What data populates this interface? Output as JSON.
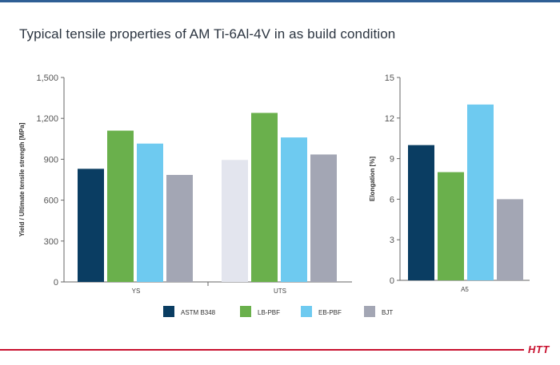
{
  "title": "Typical tensile properties of AM Ti-6Al-4V in as build condition",
  "logo_text": "HTT",
  "colors": {
    "top_bar": "#2f5f95",
    "footer_line": "#c8102e",
    "logo": "#c8102e",
    "title": "#2b3440",
    "axis": "#666666"
  },
  "legend": [
    {
      "name": "ASTM B348",
      "color": "#0a3d62"
    },
    {
      "name": "LB-PBF",
      "color": "#6ab04c"
    },
    {
      "name": "EB-PBF",
      "color": "#6ecaf0"
    },
    {
      "name": "BJT",
      "color": "#a3a6b4"
    }
  ],
  "chart_data": [
    {
      "type": "bar",
      "title": "",
      "ylabel": "Yield / Ultimate tensile strength [MPa]",
      "ylim": [
        0,
        1500
      ],
      "yticks": [
        "0",
        "300",
        "600",
        "900",
        "1,200",
        "1,500"
      ],
      "categories": [
        "YS",
        "UTS"
      ],
      "series": [
        {
          "name": "ASTM B348",
          "color": "#0a3d62",
          "values": [
            830,
            895
          ],
          "colors": [
            "#0a3d62",
            "#e3e5ee"
          ]
        },
        {
          "name": "LB-PBF",
          "color": "#6ab04c",
          "values": [
            1110,
            1240
          ]
        },
        {
          "name": "EB-PBF",
          "color": "#6ecaf0",
          "values": [
            1015,
            1060
          ]
        },
        {
          "name": "BJT",
          "color": "#a3a6b4",
          "values": [
            785,
            935
          ]
        }
      ]
    },
    {
      "type": "bar",
      "title": "",
      "ylabel": "Elongation [%]",
      "ylim": [
        0,
        15
      ],
      "yticks": [
        "0",
        "3",
        "6",
        "9",
        "12",
        "15"
      ],
      "categories": [
        "A5"
      ],
      "series": [
        {
          "name": "ASTM B348",
          "color": "#0a3d62",
          "values": [
            10
          ]
        },
        {
          "name": "LB-PBF",
          "color": "#6ab04c",
          "values": [
            8
          ]
        },
        {
          "name": "EB-PBF",
          "color": "#6ecaf0",
          "values": [
            13
          ]
        },
        {
          "name": "BJT",
          "color": "#a3a6b4",
          "values": [
            6
          ]
        }
      ]
    }
  ]
}
